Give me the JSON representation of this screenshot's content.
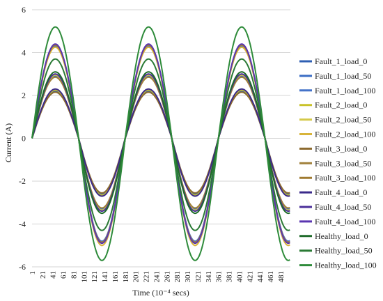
{
  "chart_data": {
    "type": "line",
    "title": "",
    "xlabel": "Time (10⁻⁴ secs)",
    "ylabel": "Current (A)",
    "ylim": [
      -6,
      6
    ],
    "yticks": [
      "6",
      "4",
      "2",
      "0",
      "-2",
      "-4",
      "-6"
    ],
    "xticks": [
      "1",
      "21",
      "41",
      "61",
      "81",
      "101",
      "121",
      "141",
      "161",
      "181",
      "201",
      "221",
      "241",
      "261",
      "281",
      "301",
      "321",
      "341",
      "361",
      "381",
      "401",
      "421",
      "441",
      "461",
      "481"
    ],
    "x_range": [
      1,
      500
    ],
    "period": 180,
    "legend_position": "right",
    "grid": "horizontal",
    "series": [
      {
        "name": "Fault_1_load_0",
        "color": "#2f5fb3",
        "amplitude_pos": 2.2,
        "amplitude_neg": 2.6
      },
      {
        "name": "Fault_1_load_50",
        "color": "#3a6cc4",
        "amplitude_pos": 2.9,
        "amplitude_neg": 3.3
      },
      {
        "name": "Fault_1_load_100",
        "color": "#4473c9",
        "amplitude_pos": 4.3,
        "amplitude_neg": 4.8
      },
      {
        "name": "Fault_2_load_0",
        "color": "#c9c22a",
        "amplitude_pos": 2.25,
        "amplitude_neg": 2.65
      },
      {
        "name": "Fault_2_load_50",
        "color": "#d4c94a",
        "amplitude_pos": 2.95,
        "amplitude_neg": 3.35
      },
      {
        "name": "Fault_2_load_100",
        "color": "#d8b43a",
        "amplitude_pos": 4.25,
        "amplitude_neg": 5.0
      },
      {
        "name": "Fault_3_load_0",
        "color": "#8c6a2e",
        "amplitude_pos": 2.15,
        "amplitude_neg": 2.55
      },
      {
        "name": "Fault_3_load_50",
        "color": "#a0803a",
        "amplitude_pos": 2.85,
        "amplitude_neg": 3.25
      },
      {
        "name": "Fault_3_load_100",
        "color": "#a07a30",
        "amplitude_pos": 4.35,
        "amplitude_neg": 4.85
      },
      {
        "name": "Fault_4_load_0",
        "color": "#3b2a8a",
        "amplitude_pos": 2.3,
        "amplitude_neg": 2.7
      },
      {
        "name": "Fault_4_load_50",
        "color": "#4a2f9a",
        "amplitude_pos": 3.0,
        "amplitude_neg": 3.4
      },
      {
        "name": "Fault_4_load_100",
        "color": "#5a36b0",
        "amplitude_pos": 4.4,
        "amplitude_neg": 4.9
      },
      {
        "name": "Healthy_load_0",
        "color": "#1f6b2a",
        "amplitude_pos": 3.1,
        "amplitude_neg": 3.5
      },
      {
        "name": "Healthy_load_50",
        "color": "#2a7a35",
        "amplitude_pos": 3.7,
        "amplitude_neg": 4.3
      },
      {
        "name": "Healthy_load_100",
        "color": "#2e8b3a",
        "amplitude_pos": 5.2,
        "amplitude_neg": 5.7
      }
    ]
  }
}
